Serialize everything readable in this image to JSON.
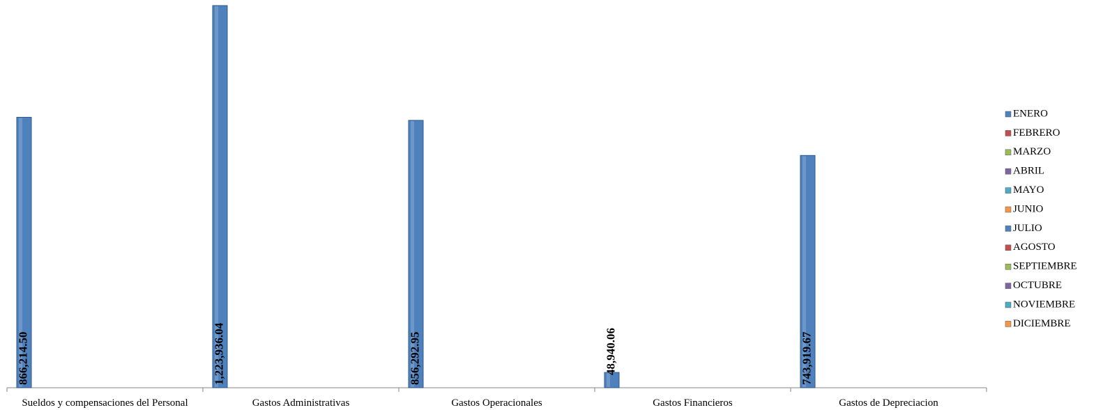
{
  "chart_data": {
    "type": "bar",
    "categories": [
      "Sueldos y compensaciones del Personal",
      "Gastos Administrativas",
      "Gastos Operacionales",
      "Gastos Financieros",
      "Gastos de Depreciacion"
    ],
    "series": [
      {
        "name": "ENERO",
        "color": "#4f81bd",
        "values": [
          866214.5,
          1223936.04,
          856292.95,
          48940.06,
          743919.67
        ],
        "value_labels": [
          "866,214.50",
          "1,223,936.04",
          "856,292.95",
          "48,940.06",
          "743,919.67"
        ]
      },
      {
        "name": "FEBRERO",
        "color": "#c0504d",
        "values": [
          null,
          null,
          null,
          null,
          null
        ]
      },
      {
        "name": "MARZO",
        "color": "#9bbb59",
        "values": [
          null,
          null,
          null,
          null,
          null
        ]
      },
      {
        "name": "ABRIL",
        "color": "#8064a2",
        "values": [
          null,
          null,
          null,
          null,
          null
        ]
      },
      {
        "name": "MAYO",
        "color": "#4bacc6",
        "values": [
          null,
          null,
          null,
          null,
          null
        ]
      },
      {
        "name": "JUNIO",
        "color": "#f79646",
        "values": [
          null,
          null,
          null,
          null,
          null
        ]
      },
      {
        "name": "JULIO",
        "color": "#4f81bd",
        "values": [
          null,
          null,
          null,
          null,
          null
        ]
      },
      {
        "name": "AGOSTO",
        "color": "#c0504d",
        "values": [
          null,
          null,
          null,
          null,
          null
        ]
      },
      {
        "name": "SEPTIEMBRE",
        "color": "#9bbb59",
        "values": [
          null,
          null,
          null,
          null,
          null
        ]
      },
      {
        "name": "OCTUBRE",
        "color": "#8064a2",
        "values": [
          null,
          null,
          null,
          null,
          null
        ]
      },
      {
        "name": "NOVIEMBRE",
        "color": "#4bacc6",
        "values": [
          null,
          null,
          null,
          null,
          null
        ]
      },
      {
        "name": "DICIEMBRE",
        "color": "#f79646",
        "values": [
          null,
          null,
          null,
          null,
          null
        ]
      }
    ]
  }
}
